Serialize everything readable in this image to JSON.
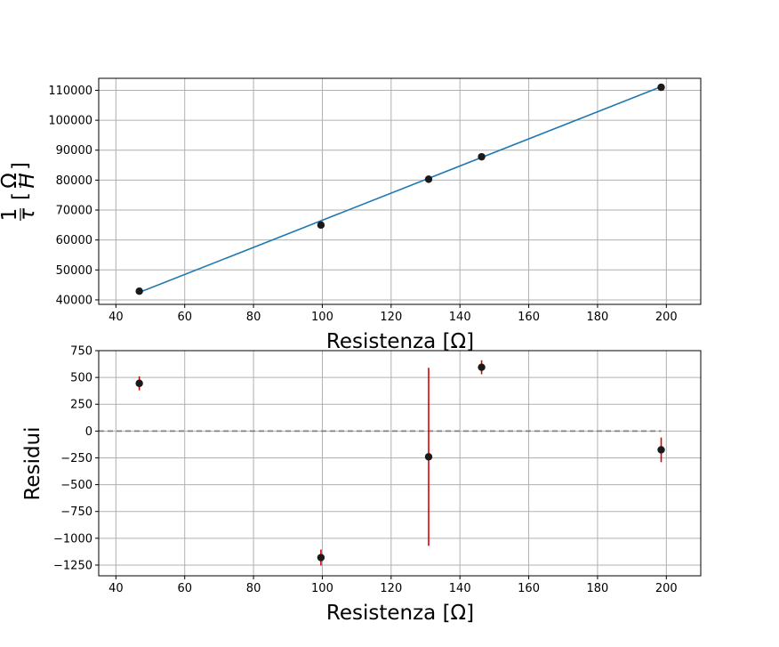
{
  "chart_data": [
    {
      "type": "line",
      "xlabel": "Resistenza [Ω]",
      "ylabel_parts": {
        "num": "1",
        "den": "τ",
        "unit_num": "Ω",
        "unit_den": "H"
      },
      "xlim": [
        35,
        210
      ],
      "ylim": [
        38500,
        114000
      ],
      "xticks": [
        40,
        60,
        80,
        100,
        120,
        140,
        160,
        180,
        200
      ],
      "yticks": [
        40000,
        50000,
        60000,
        70000,
        80000,
        90000,
        100000,
        110000
      ],
      "grid": true,
      "series": [
        {
          "kind": "scatter",
          "color": "#1a1a1a",
          "x": [
            46.8,
            99.6,
            130.9,
            146.3,
            198.5
          ],
          "y": [
            42900,
            65000,
            80300,
            87800,
            111000
          ]
        },
        {
          "kind": "line",
          "color": "#1f77b4",
          "x": [
            46.8,
            198.5
          ],
          "y": [
            42500,
            111200
          ]
        }
      ]
    },
    {
      "type": "scatter",
      "xlabel": "Resistenza [Ω]",
      "ylabel": "Residui",
      "xlim": [
        35,
        210
      ],
      "ylim": [
        -1350,
        750
      ],
      "xticks": [
        40,
        60,
        80,
        100,
        120,
        140,
        160,
        180,
        200
      ],
      "yticks": [
        -1250,
        -1000,
        -750,
        -500,
        -250,
        0,
        250,
        500,
        750
      ],
      "grid": true,
      "reference_line": {
        "y": 0,
        "x": [
          35,
          198.5
        ],
        "style": "dashed",
        "color": "#808080"
      },
      "series": [
        {
          "kind": "errorbar",
          "color": "#1a1a1a",
          "error_color": "#dd0000",
          "x": [
            46.8,
            99.6,
            130.9,
            146.3,
            198.5
          ],
          "y": [
            445,
            -1180,
            -240,
            595,
            -175
          ],
          "err": [
            65,
            75,
            830,
            65,
            115
          ]
        }
      ]
    }
  ]
}
